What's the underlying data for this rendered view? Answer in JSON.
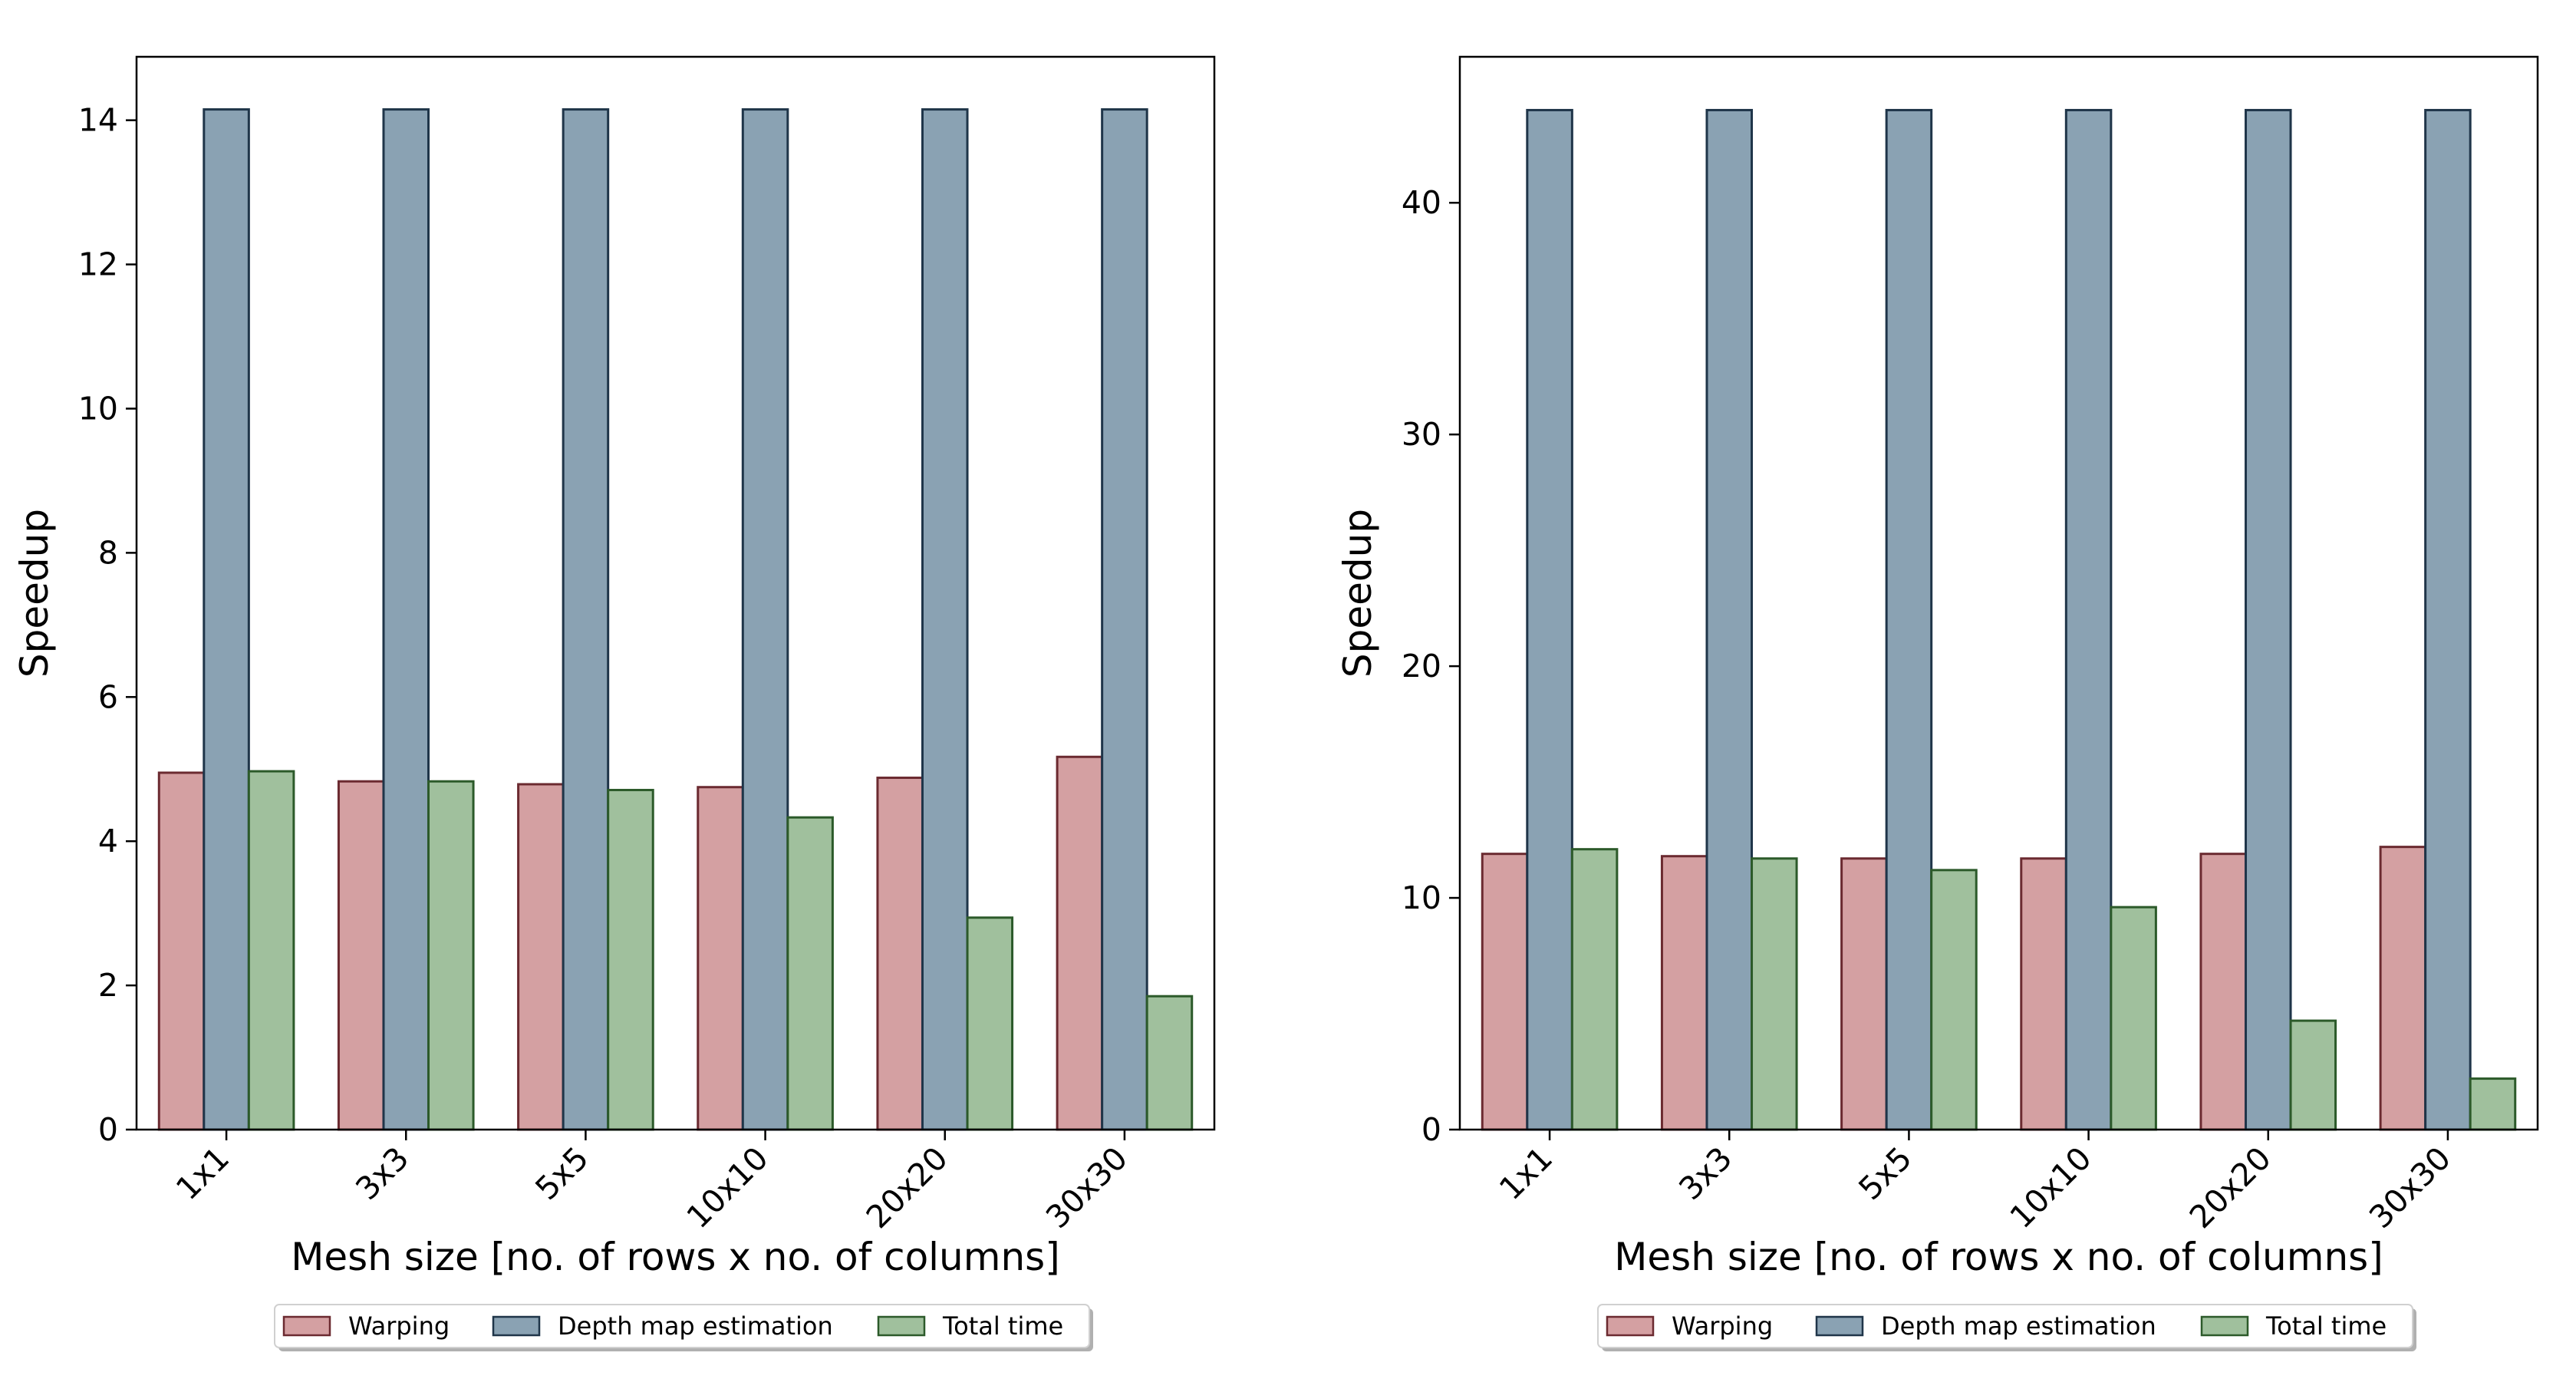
{
  "colors": {
    "warping_fill": "#d4a0a2",
    "warping_edge": "#6b2a30",
    "depth_fill": "#8aa2b3",
    "depth_edge": "#1f3549",
    "total_fill": "#a0c09d",
    "total_edge": "#2c5a2a"
  },
  "chart_data": [
    {
      "type": "bar",
      "categories": [
        "1x1",
        "3x3",
        "5x5",
        "10x10",
        "20x20",
        "30x30"
      ],
      "series": [
        {
          "name": "Warping",
          "values": [
            4.95,
            4.83,
            4.79,
            4.75,
            4.88,
            5.17
          ]
        },
        {
          "name": "Depth map estimation",
          "values": [
            14.15,
            14.15,
            14.15,
            14.15,
            14.15,
            14.15
          ]
        },
        {
          "name": "Total time",
          "values": [
            4.97,
            4.83,
            4.71,
            4.33,
            2.94,
            1.85
          ]
        }
      ],
      "xlabel": "Mesh size [no. of rows x no. of columns]",
      "ylabel": "Speedup",
      "ylim": [
        0,
        14.88
      ],
      "yticks": [
        0,
        2,
        4,
        6,
        8,
        10,
        12,
        14
      ],
      "legend": [
        "Warping",
        "Depth map estimation",
        "Total time"
      ],
      "legend_position": "bottom-center"
    },
    {
      "type": "bar",
      "categories": [
        "1x1",
        "3x3",
        "5x5",
        "10x10",
        "20x20",
        "30x30"
      ],
      "series": [
        {
          "name": "Warping",
          "values": [
            11.9,
            11.8,
            11.7,
            11.7,
            11.9,
            12.2
          ]
        },
        {
          "name": "Depth map estimation",
          "values": [
            44.0,
            44.0,
            44.0,
            44.0,
            44.0,
            44.0
          ]
        },
        {
          "name": "Total time",
          "values": [
            12.1,
            11.7,
            11.2,
            9.6,
            4.7,
            2.2
          ]
        }
      ],
      "xlabel": "Mesh size [no. of rows x no. of columns]",
      "ylabel": "Speedup",
      "ylim": [
        0,
        46.3
      ],
      "yticks": [
        0,
        10,
        20,
        30,
        40
      ],
      "legend": [
        "Warping",
        "Depth map estimation",
        "Total time"
      ],
      "legend_position": "bottom-center"
    }
  ]
}
